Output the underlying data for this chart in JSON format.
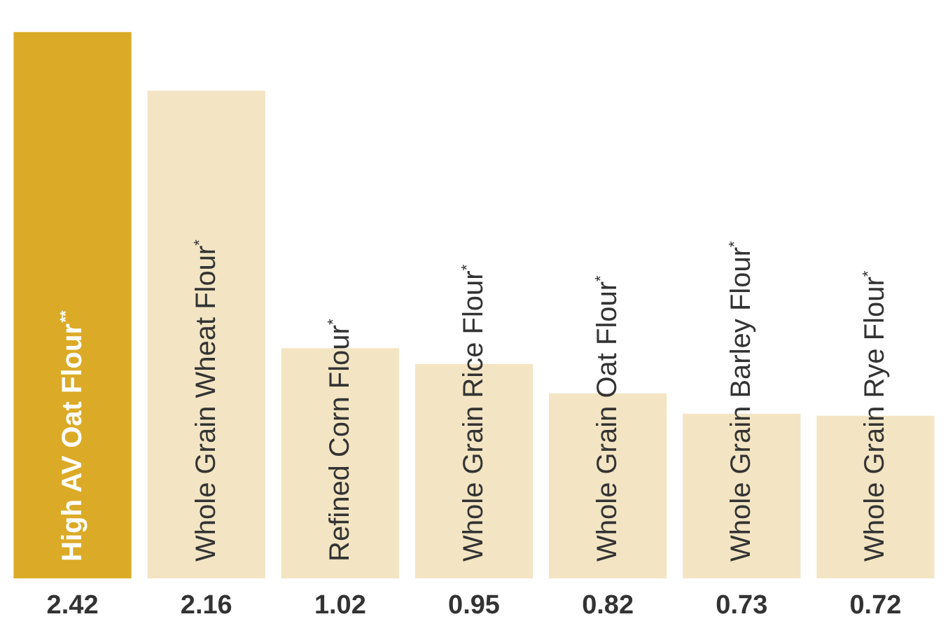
{
  "chart_data": {
    "type": "bar",
    "categories": [
      "High AV Oat Flour$^{**}$",
      "Whole Grain Wheat Flour$^{*}$",
      "Refined Corn Flour$^{*}$",
      "Whole Grain Rice Flour$^{*}$",
      "Whole Grain Oat Flour$^{*}$",
      "Whole Grain Barley Flour$^{*}$",
      "Whole Grain Rye Flour$^{*}$"
    ],
    "values": [
      2.42,
      2.16,
      1.02,
      0.95,
      0.82,
      0.73,
      0.72
    ],
    "colors": [
      "#dbab27",
      "#f3e5c3",
      "#f3e5c3",
      "#f3e5c3",
      "#f3e5c3",
      "#f3e5c3",
      "#f3e5c3"
    ],
    "data_labels": true
  }
}
